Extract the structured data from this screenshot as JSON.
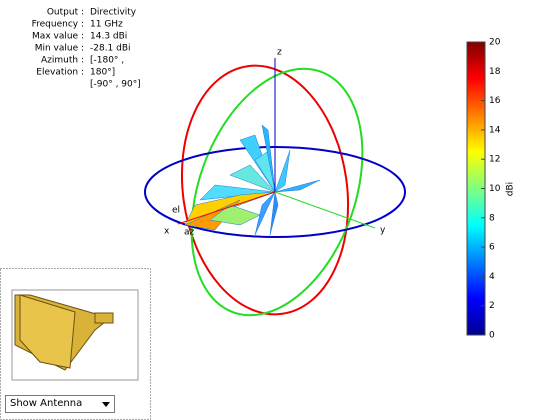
{
  "info": {
    "labels": [
      "Output :",
      "Frequency :",
      "Max value :",
      "Min value :",
      "Azimuth :",
      "Elevation :"
    ],
    "values": [
      "Directivity",
      "11 GHz",
      "14.3 dBi",
      "-28.1 dBi",
      "[-180° ,",
      "180°]",
      "[-90° , 90°]"
    ]
  },
  "axes": {
    "x": "x",
    "y": "y",
    "z": "z",
    "el": "el",
    "az": "az"
  },
  "colorbar": {
    "label": "dBi",
    "lim": [
      0,
      20
    ],
    "ticks": [
      0,
      2,
      4,
      6,
      8,
      10,
      12,
      14,
      16,
      18,
      20
    ]
  },
  "dropdown": {
    "selected": "Show Antenna"
  }
}
